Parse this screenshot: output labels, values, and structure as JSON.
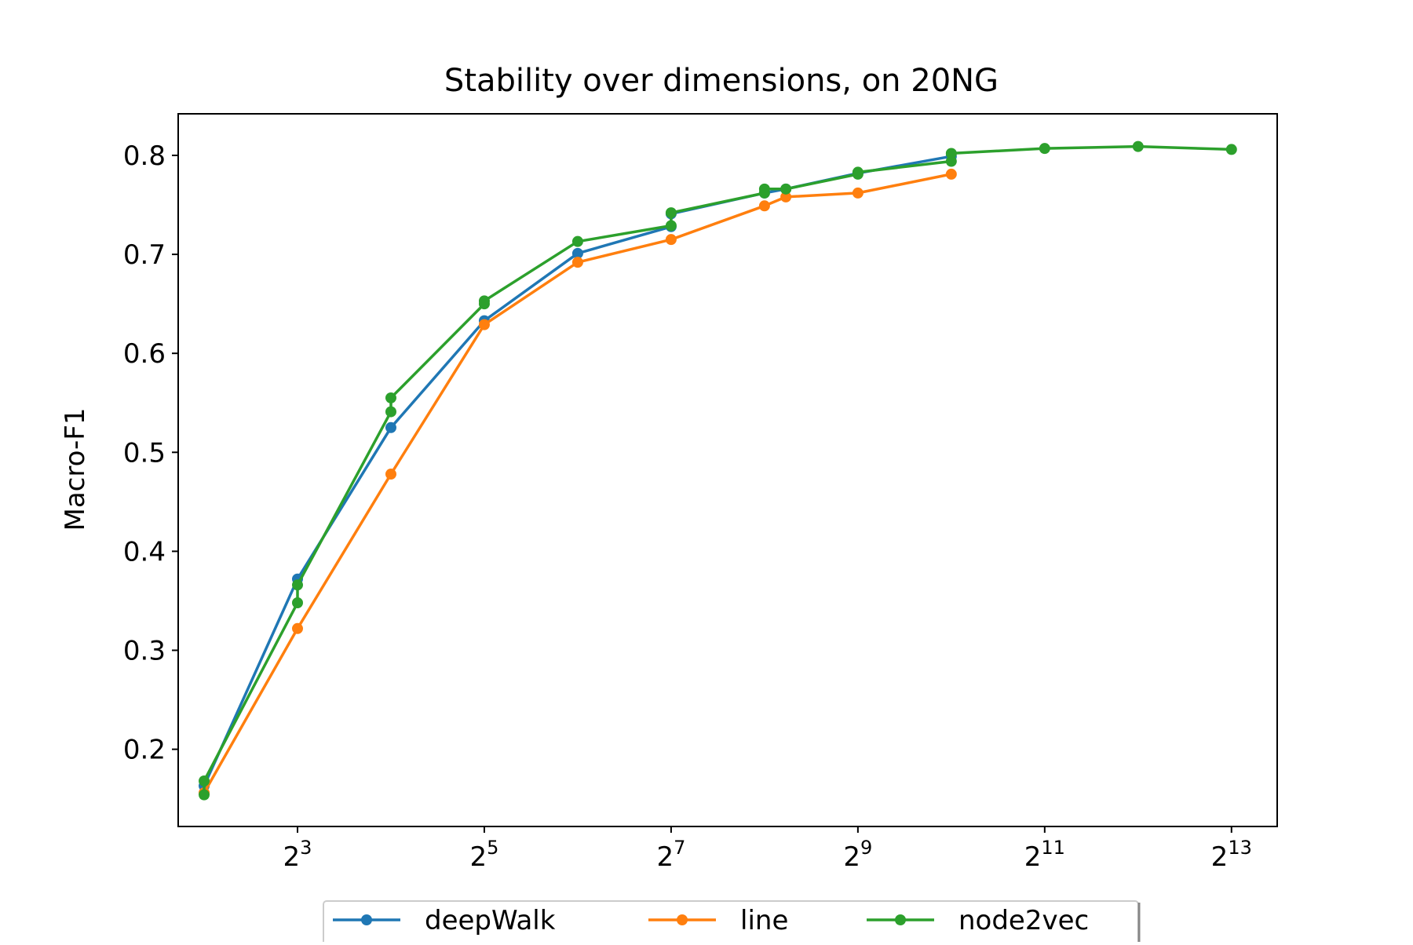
{
  "chart_data": {
    "type": "line",
    "title": "Stability over dimensions, on 20NG",
    "xlabel": "",
    "ylabel": "Macro-F1",
    "x_scale": "log2",
    "x_ticks": [
      {
        "value": 8,
        "base": "2",
        "exp": "3"
      },
      {
        "value": 32,
        "base": "2",
        "exp": "5"
      },
      {
        "value": 128,
        "base": "2",
        "exp": "7"
      },
      {
        "value": 512,
        "base": "2",
        "exp": "9"
      },
      {
        "value": 2048,
        "base": "2",
        "exp": "11"
      },
      {
        "value": 8192,
        "base": "2",
        "exp": "13"
      }
    ],
    "y_ticks": [
      "0.2",
      "0.3",
      "0.4",
      "0.5",
      "0.6",
      "0.7",
      "0.8"
    ],
    "xlim": [
      3.3,
      11500
    ],
    "ylim": [
      0.122,
      0.842
    ],
    "grid": false,
    "legend_position": "bottom-center",
    "series": [
      {
        "name": "deepWalk",
        "color": "#1f77b4",
        "points": [
          [
            4,
            0.163
          ],
          [
            8,
            0.372
          ],
          [
            16,
            0.525
          ],
          [
            32,
            0.633
          ],
          [
            64,
            0.701
          ],
          [
            128,
            0.728
          ],
          [
            128,
            0.741
          ],
          [
            256,
            0.762
          ],
          [
            300,
            0.766
          ],
          [
            512,
            0.782
          ],
          [
            1024,
            0.799
          ]
        ]
      },
      {
        "name": "line",
        "color": "#ff7f0e",
        "points": [
          [
            4,
            0.156
          ],
          [
            8,
            0.322
          ],
          [
            16,
            0.478
          ],
          [
            32,
            0.629
          ],
          [
            64,
            0.692
          ],
          [
            128,
            0.715
          ],
          [
            256,
            0.749
          ],
          [
            300,
            0.758
          ],
          [
            512,
            0.762
          ],
          [
            1024,
            0.781
          ]
        ]
      },
      {
        "name": "node2vec",
        "color": "#2ca02c",
        "points": [
          [
            4,
            0.154
          ],
          [
            4,
            0.168
          ],
          [
            8,
            0.348
          ],
          [
            8,
            0.366
          ],
          [
            16,
            0.541
          ],
          [
            16,
            0.555
          ],
          [
            32,
            0.65
          ],
          [
            32,
            0.653
          ],
          [
            64,
            0.713
          ],
          [
            128,
            0.729
          ],
          [
            128,
            0.742
          ],
          [
            256,
            0.762
          ],
          [
            256,
            0.766
          ],
          [
            300,
            0.766
          ],
          [
            512,
            0.781
          ],
          [
            512,
            0.783
          ],
          [
            1024,
            0.794
          ],
          [
            1024,
            0.802
          ],
          [
            2048,
            0.807
          ],
          [
            4096,
            0.809
          ],
          [
            8192,
            0.806
          ]
        ]
      }
    ]
  }
}
